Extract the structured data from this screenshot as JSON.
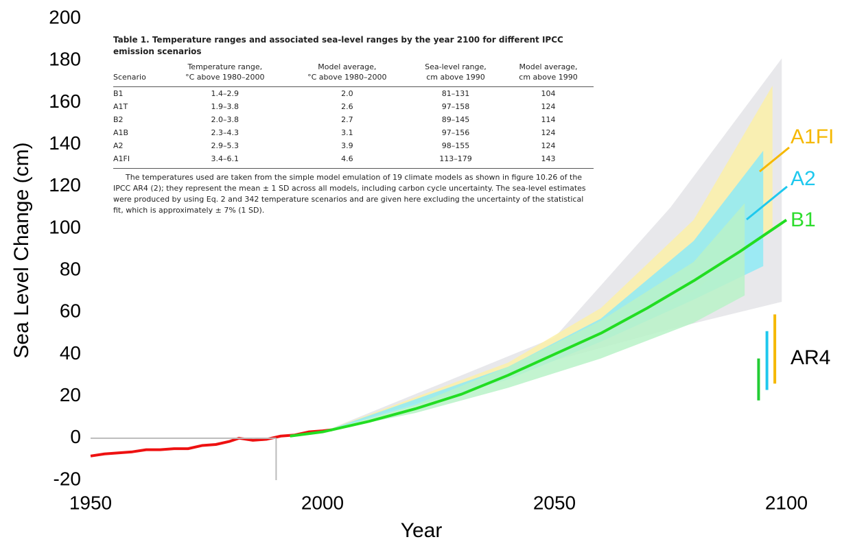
{
  "chart_data": {
    "type": "line",
    "x_label": "Year",
    "y_label": "Sea Level Change (cm)",
    "xlim": [
      1950,
      2100
    ],
    "xticks": [
      1950,
      2000,
      2050,
      2100
    ],
    "ylim": [
      -20,
      200
    ],
    "yticks": [
      -20,
      0,
      20,
      40,
      60,
      80,
      100,
      120,
      140,
      160,
      180,
      200
    ],
    "reference_lines": {
      "x": 1990,
      "y": 0,
      "color": "#bbbbbb"
    },
    "bands": [
      {
        "color": "#e4e4e8",
        "x": [
          2000,
          2050,
          2075,
          2099
        ],
        "lower": [
          3,
          37,
          52,
          65
        ],
        "upper": [
          3,
          48,
          110,
          181
        ]
      },
      {
        "name": "A1FI",
        "color": "#f5b800",
        "fill": "#fbf0a8",
        "x": [
          2000,
          2040,
          2060,
          2080,
          2097
        ],
        "lower": [
          3,
          30,
          48,
          70,
          100
        ],
        "upper": [
          3,
          36,
          62,
          104,
          168
        ]
      },
      {
        "name": "A2",
        "color": "#1ec8ee",
        "fill": "#8eeaf6",
        "x": [
          2000,
          2040,
          2060,
          2080,
          2095
        ],
        "lower": [
          3,
          28,
          46,
          66,
          82
        ],
        "upper": [
          3,
          34,
          57,
          94,
          137
        ]
      },
      {
        "name": "B1",
        "color": "#2ddc2d",
        "fill": "#b8f2c8",
        "x": [
          2000,
          2020,
          2040,
          2060,
          2080,
          2091
        ],
        "lower": [
          3,
          12,
          24,
          38,
          55,
          68
        ],
        "upper": [
          3,
          16,
          34,
          56,
          84,
          112
        ]
      }
    ],
    "series": [
      {
        "color": "#ee1111",
        "x": [
          1950,
          1953,
          1956,
          1959,
          1962,
          1965,
          1968,
          1971,
          1974,
          1977,
          1980,
          1982,
          1985,
          1988,
          1991,
          1994,
          1997,
          2000,
          2002
        ],
        "values": [
          -8.5,
          -7.5,
          -7,
          -6.5,
          -5.5,
          -5.5,
          -5,
          -5,
          -3.5,
          -3,
          -1.5,
          0,
          -1,
          -0.5,
          1,
          1.5,
          3,
          3.5,
          4
        ]
      },
      {
        "color": "#22dd22",
        "x": [
          1993,
          2000,
          2010,
          2020,
          2030,
          2040,
          2050,
          2060,
          2070,
          2080,
          2090,
          2100
        ],
        "values": [
          1,
          3,
          8,
          14,
          21,
          30,
          40,
          50,
          62,
          75,
          89,
          104
        ]
      }
    ],
    "ar4": {
      "name": "AR4",
      "bars": [
        {
          "color": "#22cc33",
          "x": 2094,
          "low": 18,
          "high": 38
        },
        {
          "color": "#1ec8ee",
          "x": 2095.8,
          "low": 23,
          "high": 51
        },
        {
          "color": "#f5b800",
          "x": 2097.5,
          "low": 26,
          "high": 59
        }
      ]
    }
  },
  "table": {
    "title": "Table 1. Temperature ranges and associated sea-level ranges by the year 2100 for different IPCC emission scenarios",
    "headers": [
      [
        "Scenario"
      ],
      [
        "Temperature range,",
        "°C above 1980–2000"
      ],
      [
        "Model average,",
        "°C above 1980–2000"
      ],
      [
        "Sea-level range,",
        "cm above 1990"
      ],
      [
        "Model average,",
        "cm above 1990"
      ]
    ],
    "rows": [
      [
        "B1",
        "1.4–2.9",
        "2.0",
        "81–131",
        "104"
      ],
      [
        "A1T",
        "1.9–3.8",
        "2.6",
        "97–158",
        "124"
      ],
      [
        "B2",
        "2.0–3.8",
        "2.7",
        "89–145",
        "114"
      ],
      [
        "A1B",
        "2.3–4.3",
        "3.1",
        "97–156",
        "124"
      ],
      [
        "A2",
        "2.9–5.3",
        "3.9",
        "98–155",
        "124"
      ],
      [
        "A1FI",
        "3.4–6.1",
        "4.6",
        "113–179",
        "143"
      ]
    ],
    "footnote": "The temperatures used are taken from the simple model emulation of 19 climate models as shown in figure 10.26 of the IPCC AR4 (2); they represent the mean ± 1 SD across all models, including carbon cycle uncertainty. The sea-level estimates were produced by using Eq. 2 and 342 temperature scenarios and are given here excluding the uncertainty of the statistical fit, which is approximately ± 7% (1 SD)."
  }
}
